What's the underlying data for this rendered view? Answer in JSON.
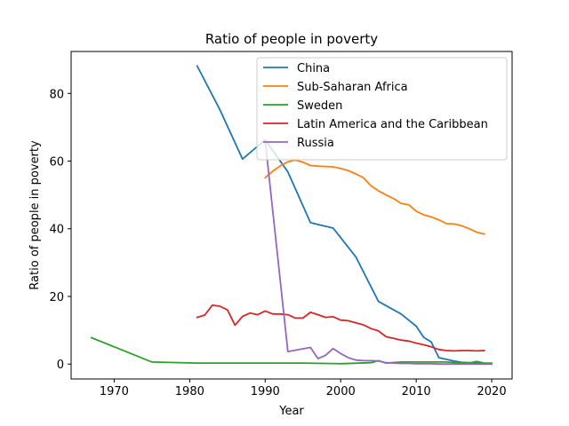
{
  "chart_data": {
    "type": "line",
    "title": "Ratio of people in poverty",
    "xlabel": "Year",
    "ylabel": "Ratio of people in poverty",
    "xlim": [
      1964.3,
      2022.7
    ],
    "ylim": [
      -4.4,
      92.4
    ],
    "xticks": [
      1970,
      1980,
      1990,
      2000,
      2010,
      2020
    ],
    "yticks": [
      0,
      20,
      40,
      60,
      80
    ],
    "grid": false,
    "legend": "top-right",
    "series": [
      {
        "name": "China",
        "color": "#1f77b4",
        "x": [
          1981,
          1984,
          1987,
          1990,
          1993,
          1996,
          1999,
          2002,
          2005,
          2008,
          2010,
          2011,
          2012,
          2013,
          2014,
          2015,
          2016,
          2017,
          2018,
          2019
        ],
        "y": [
          88.1,
          75.2,
          60.6,
          66.3,
          56.8,
          41.8,
          40.2,
          31.7,
          18.5,
          14.8,
          11.2,
          7.9,
          6.5,
          1.9,
          1.4,
          0.9,
          0.5,
          0.4,
          0.4,
          0.1
        ]
      },
      {
        "name": "Sub-Saharan Africa",
        "color": "#ff7f0e",
        "x": [
          1990,
          1991,
          1992,
          1993,
          1994,
          1995,
          1996,
          1997,
          1998,
          1999,
          2000,
          2001,
          2002,
          2003,
          2004,
          2005,
          2006,
          2007,
          2008,
          2009,
          2010,
          2011,
          2012,
          2013,
          2014,
          2015,
          2016,
          2017,
          2018,
          2019
        ],
        "y": [
          55.1,
          57.0,
          58.6,
          59.8,
          60.3,
          59.7,
          58.7,
          58.5,
          58.4,
          58.3,
          57.8,
          57.2,
          56.2,
          55.1,
          52.7,
          51.2,
          50.0,
          48.9,
          47.5,
          47.1,
          45.2,
          44.1,
          43.5,
          42.6,
          41.5,
          41.4,
          40.9,
          40.0,
          39.0,
          38.4
        ]
      },
      {
        "name": "Sweden",
        "color": "#2ca02c",
        "x": [
          1967,
          1975,
          1981,
          1987,
          1992,
          1995,
          2000,
          2004,
          2005,
          2006,
          2008,
          2010,
          2012,
          2014,
          2016,
          2017,
          2018,
          2019,
          2020
        ],
        "y": [
          7.8,
          0.6,
          0.3,
          0.3,
          0.3,
          0.3,
          0.1,
          0.4,
          1.0,
          0.3,
          0.6,
          0.6,
          0.6,
          0.6,
          0.3,
          0.3,
          0.8,
          0.3,
          0.3
        ]
      },
      {
        "name": "Latin America and the Caribbean",
        "color": "#d62728",
        "x": [
          1981,
          1982,
          1983,
          1984,
          1985,
          1986,
          1987,
          1988,
          1989,
          1990,
          1991,
          1992,
          1993,
          1994,
          1995,
          1996,
          1997,
          1998,
          1999,
          2000,
          2001,
          2002,
          2003,
          2004,
          2005,
          2006,
          2007,
          2008,
          2009,
          2010,
          2011,
          2012,
          2013,
          2014,
          2015,
          2016,
          2017,
          2018,
          2019
        ],
        "y": [
          13.8,
          14.5,
          17.4,
          17.1,
          16.0,
          11.5,
          14.1,
          15.1,
          14.6,
          15.7,
          14.8,
          14.8,
          14.6,
          13.6,
          13.6,
          15.3,
          14.6,
          13.8,
          14.0,
          13.0,
          12.8,
          12.2,
          11.6,
          10.5,
          9.8,
          8.1,
          7.6,
          7.1,
          6.8,
          6.2,
          5.7,
          5.1,
          4.3,
          4.0,
          3.9,
          4.0,
          4.0,
          3.9,
          4.0
        ]
      },
      {
        "name": "Russia",
        "color": "#9467bd",
        "x": [
          1990,
          1993,
          1996,
          1997,
          1998,
          1999,
          2000,
          2001,
          2002,
          2003,
          2004,
          2005,
          2006,
          2007,
          2008,
          2009,
          2010,
          2011,
          2012,
          2013,
          2014,
          2015,
          2016,
          2017,
          2018,
          2019,
          2020
        ],
        "y": [
          66.0,
          3.7,
          4.9,
          1.6,
          2.6,
          4.6,
          3.1,
          1.9,
          1.2,
          1.0,
          1.0,
          0.9,
          0.4,
          0.3,
          0.2,
          0.2,
          0.1,
          0.1,
          0.1,
          0.0,
          0.0,
          0.0,
          0.0,
          0.0,
          0.0,
          0.0,
          0.0
        ]
      }
    ]
  }
}
